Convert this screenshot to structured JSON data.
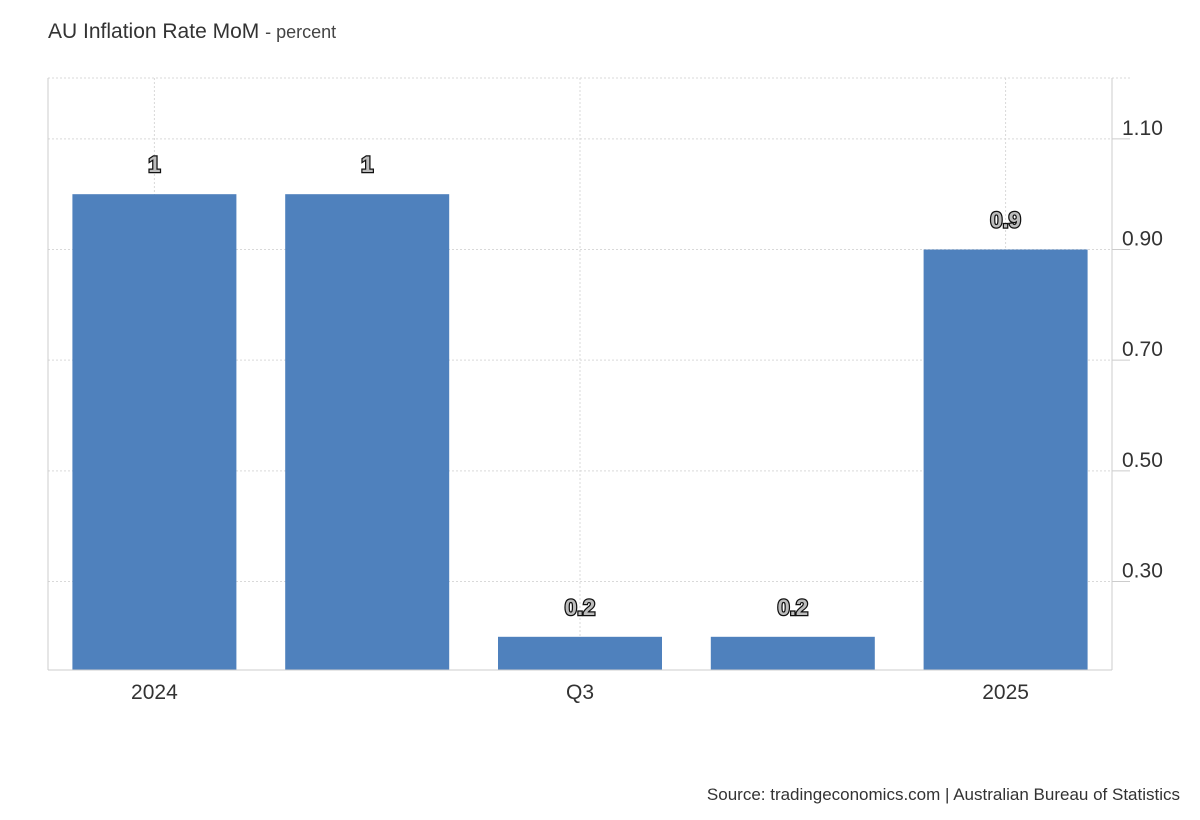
{
  "header": {
    "title": "AU Inflation Rate MoM",
    "subtitle": "- percent"
  },
  "footer": {
    "source": "Source: tradingeconomics.com | Australian Bureau of Statistics"
  },
  "colors": {
    "bar": "#4f81bd",
    "grid": "#d9d9d9",
    "axis": "#cccccc",
    "text": "#333333"
  },
  "chart_data": {
    "type": "bar",
    "title": "AU Inflation Rate MoM",
    "subtitle": "- percent",
    "values": [
      1,
      1,
      0.2,
      0.2,
      0.9
    ],
    "data_labels": [
      "1",
      "1",
      "0.2",
      "0.2",
      "0.9"
    ],
    "x_tick_labels": [
      "2024",
      "Q3",
      "2025"
    ],
    "y_ticks": [
      0.3,
      0.5,
      0.7,
      0.9,
      1.1
    ],
    "y_tick_labels": [
      "0.30",
      "0.50",
      "0.70",
      "0.90",
      "1.10"
    ],
    "ylim": [
      0.14,
      1.21
    ],
    "y_axis_side": "right",
    "grid": true,
    "xlabel": "",
    "ylabel": ""
  }
}
